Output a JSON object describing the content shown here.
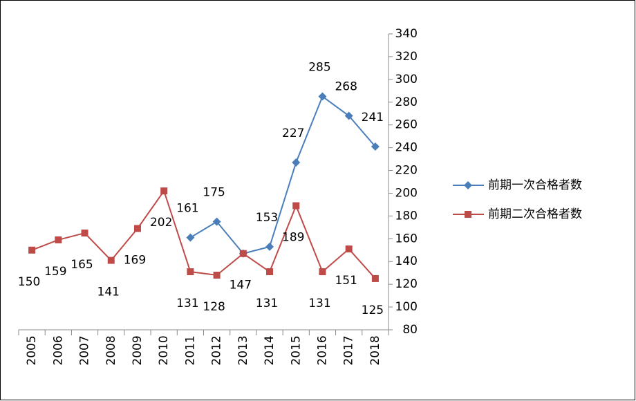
{
  "chart_data": {
    "type": "line",
    "categories": [
      "2005",
      "2006",
      "2007",
      "2008",
      "2009",
      "2010",
      "2011",
      "2012",
      "2013",
      "2014",
      "2015",
      "2016",
      "2017",
      "2018"
    ],
    "series": [
      {
        "name": "前期一次合格者数",
        "color": "#4a7ebb",
        "marker": "diamond",
        "values": [
          null,
          null,
          null,
          null,
          null,
          null,
          161,
          175,
          147,
          153,
          227,
          285,
          268,
          241
        ],
        "value_labels": [
          null,
          null,
          null,
          null,
          null,
          null,
          "161",
          "175",
          null,
          "153",
          "227",
          "285",
          "268",
          "241"
        ]
      },
      {
        "name": "前期二次合格者数",
        "color": "#be4b48",
        "marker": "square",
        "values": [
          150,
          159,
          165,
          141,
          169,
          202,
          131,
          128,
          147,
          131,
          189,
          131,
          151,
          125
        ],
        "value_labels": [
          "150",
          "159",
          "165",
          "141",
          "169",
          "202",
          "131",
          "128",
          "147",
          "131",
          "189",
          "131",
          "151",
          "125"
        ]
      }
    ],
    "ylim": [
      80,
      340
    ],
    "yticks": [
      80,
      100,
      120,
      140,
      160,
      180,
      200,
      220,
      240,
      260,
      280,
      300,
      320,
      340
    ],
    "y_axis_side": "right",
    "legend": "right"
  }
}
